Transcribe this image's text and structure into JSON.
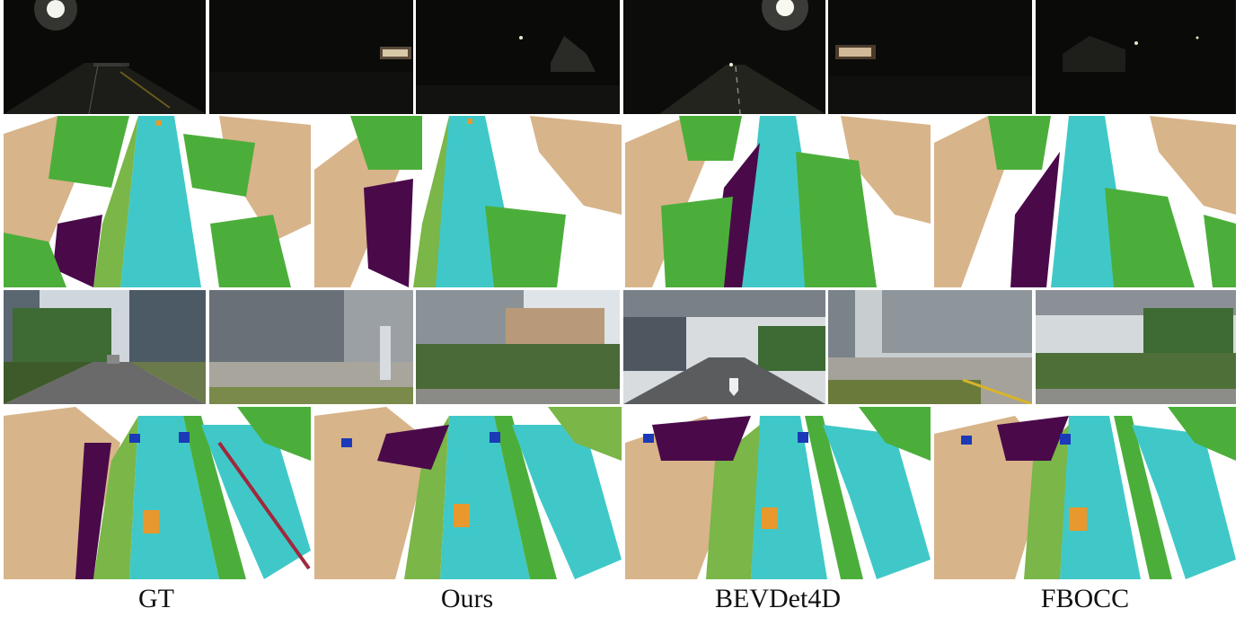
{
  "figure": {
    "methods": [
      {
        "label": "GT"
      },
      {
        "label": "Ours"
      },
      {
        "label": "BEVDet4D"
      },
      {
        "label": "FBOCC"
      }
    ]
  },
  "colors": {
    "road": "#40c8c8",
    "sidewalk": "#7ab648",
    "terrain": "#3e9a2a",
    "vegetation": "#4cae3a",
    "building": "#d8b48a",
    "manmade": "#4a0a4a",
    "car": "#1a3ab8",
    "pedestrian": "#e8982c",
    "barrier": "#a0283c"
  }
}
